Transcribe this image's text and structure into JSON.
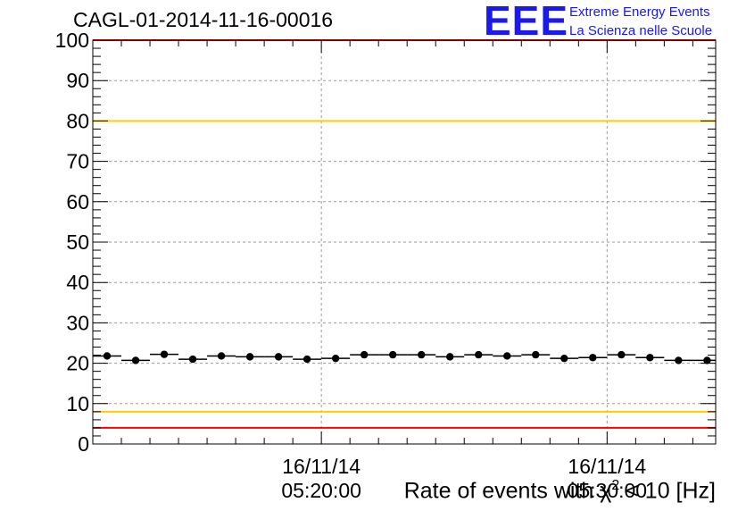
{
  "header": {
    "run_title": "CAGL-01-2014-11-16-00016",
    "logo_mark": "EEE",
    "logo_line1": "Extreme Energy Events",
    "logo_line2": "La Scienza nelle Scuole",
    "brand_color": "#1a1aee"
  },
  "chart_data": {
    "type": "scatter",
    "title": "CAGL-01-2014-11-16-00016",
    "xlabel_prefix": "Rate of events with ",
    "xlabel_symbol": "χ",
    "xlabel_sup": "2",
    "xlabel_suffix": " < 10 [Hz]",
    "ylabel": "",
    "ylim": [
      0,
      100
    ],
    "y_ticks": [
      "0",
      "10",
      "20",
      "30",
      "40",
      "50",
      "60",
      "70",
      "80",
      "90",
      "100"
    ],
    "x_time_ticks": [
      {
        "date": "16/11/14",
        "time": "05:20:00",
        "minute": 20
      },
      {
        "date": "16/11/14",
        "time": "05:30:00",
        "minute": 30
      }
    ],
    "x_range_minutes": [
      12,
      33.8
    ],
    "bin_width_minutes": 1,
    "x_minutes": [
      12.5,
      13.5,
      14.5,
      15.5,
      16.5,
      17.5,
      18.5,
      19.5,
      20.5,
      21.5,
      22.5,
      23.5,
      24.5,
      25.5,
      26.5,
      27.5,
      28.5,
      29.5,
      30.5,
      31.5,
      32.5,
      33.5
    ],
    "values": [
      21.8,
      20.7,
      22.2,
      21.0,
      21.8,
      21.6,
      21.6,
      21.0,
      21.2,
      22.1,
      22.1,
      22.1,
      21.6,
      22.1,
      21.8,
      22.1,
      21.2,
      21.4,
      22.1,
      21.4,
      20.7,
      20.7
    ],
    "reference_lines": [
      {
        "value": 100,
        "color": "#ff0000"
      },
      {
        "value": 80,
        "color": "#ffcc00"
      },
      {
        "value": 8,
        "color": "#ffcc00"
      },
      {
        "value": 4,
        "color": "#ff0000"
      }
    ],
    "grid": true,
    "marker_color": "#000000"
  }
}
